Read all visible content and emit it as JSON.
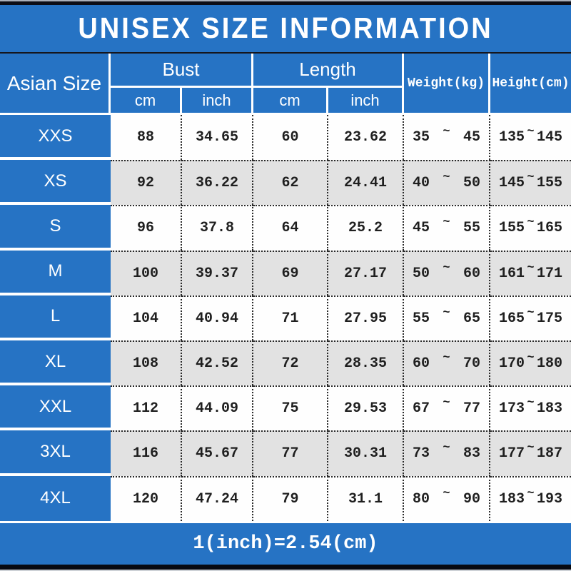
{
  "title": "UNISEX SIZE INFORMATION",
  "footer_note": "1(inch)=2.54(cm)",
  "range_separator": "~",
  "colors": {
    "blue": "#2673c4",
    "row_white": "#fefefe",
    "row_gray": "#e2e2e2",
    "dotted_border": "#2a2a2a",
    "text_white": "#ffffff",
    "top_bar": "#0c0d16"
  },
  "header": {
    "asian_size": "Asian Size",
    "bust": "Bust",
    "length": "Length",
    "weight": "Weight(kg)",
    "height": "Height(cm)",
    "cm": "cm",
    "inch": "inch"
  },
  "chart_data": {
    "type": "table",
    "columns": [
      "Asian Size",
      "Bust cm",
      "Bust inch",
      "Length cm",
      "Length inch",
      "Weight(kg)",
      "Height(cm)"
    ],
    "rows": [
      {
        "size": "XXS",
        "bust_cm": "88",
        "bust_inch": "34.65",
        "length_cm": "60",
        "length_inch": "23.62",
        "weight_min": "35",
        "weight_max": "45",
        "height_min": "135",
        "height_max": "145"
      },
      {
        "size": "XS",
        "bust_cm": "92",
        "bust_inch": "36.22",
        "length_cm": "62",
        "length_inch": "24.41",
        "weight_min": "40",
        "weight_max": "50",
        "height_min": "145",
        "height_max": "155"
      },
      {
        "size": "S",
        "bust_cm": "96",
        "bust_inch": "37.8",
        "length_cm": "64",
        "length_inch": "25.2",
        "weight_min": "45",
        "weight_max": "55",
        "height_min": "155",
        "height_max": "165"
      },
      {
        "size": "M",
        "bust_cm": "100",
        "bust_inch": "39.37",
        "length_cm": "69",
        "length_inch": "27.17",
        "weight_min": "50",
        "weight_max": "60",
        "height_min": "161",
        "height_max": "171"
      },
      {
        "size": "L",
        "bust_cm": "104",
        "bust_inch": "40.94",
        "length_cm": "71",
        "length_inch": "27.95",
        "weight_min": "55",
        "weight_max": "65",
        "height_min": "165",
        "height_max": "175"
      },
      {
        "size": "XL",
        "bust_cm": "108",
        "bust_inch": "42.52",
        "length_cm": "72",
        "length_inch": "28.35",
        "weight_min": "60",
        "weight_max": "70",
        "height_min": "170",
        "height_max": "180"
      },
      {
        "size": "XXL",
        "bust_cm": "112",
        "bust_inch": "44.09",
        "length_cm": "75",
        "length_inch": "29.53",
        "weight_min": "67",
        "weight_max": "77",
        "height_min": "173",
        "height_max": "183"
      },
      {
        "size": "3XL",
        "bust_cm": "116",
        "bust_inch": "45.67",
        "length_cm": "77",
        "length_inch": "30.31",
        "weight_min": "73",
        "weight_max": "83",
        "height_min": "177",
        "height_max": "187"
      },
      {
        "size": "4XL",
        "bust_cm": "120",
        "bust_inch": "47.24",
        "length_cm": "79",
        "length_inch": "31.1",
        "weight_min": "80",
        "weight_max": "90",
        "height_min": "183",
        "height_max": "193"
      }
    ]
  }
}
